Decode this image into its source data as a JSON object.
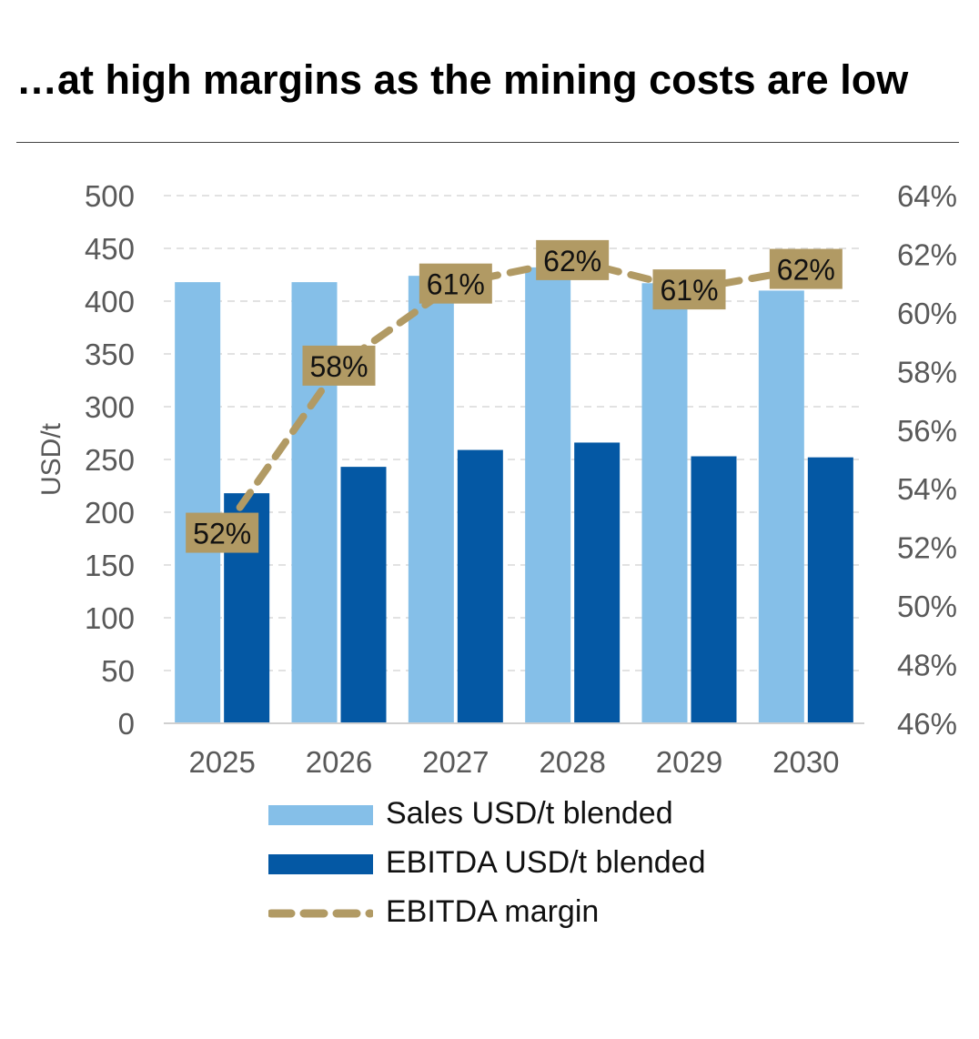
{
  "title": "…at high margins as the mining costs are low",
  "chart_data": {
    "type": "bar",
    "categories": [
      "2025",
      "2026",
      "2027",
      "2028",
      "2029",
      "2030"
    ],
    "series": [
      {
        "name": "Sales USD/t blended",
        "type": "bar",
        "axis": "left",
        "color": "#85bfe8",
        "values": [
          418,
          418,
          424,
          432,
          417,
          410
        ]
      },
      {
        "name": "EBITDA USD/t blended",
        "type": "bar",
        "axis": "left",
        "color": "#0458a4",
        "values": [
          218,
          243,
          259,
          266,
          253,
          252
        ]
      },
      {
        "name": "EBITDA margin",
        "type": "line",
        "axis": "right",
        "style": "dashed",
        "color": "#b19a64",
        "values": [
          52.5,
          58.2,
          61.0,
          61.8,
          60.8,
          61.5
        ],
        "labels": [
          "52%",
          "58%",
          "61%",
          "62%",
          "61%",
          "62%"
        ]
      }
    ],
    "ylabel": "USD/t",
    "ylim": [
      0,
      500
    ],
    "yticks": [
      "0",
      "50",
      "100",
      "150",
      "200",
      "250",
      "300",
      "350",
      "400",
      "450",
      "500"
    ],
    "y2lim": [
      46,
      64
    ],
    "y2ticks": [
      "46%",
      "48%",
      "50%",
      "52%",
      "54%",
      "56%",
      "58%",
      "60%",
      "62%",
      "64%"
    ],
    "grid": true,
    "legend_position": "bottom"
  }
}
